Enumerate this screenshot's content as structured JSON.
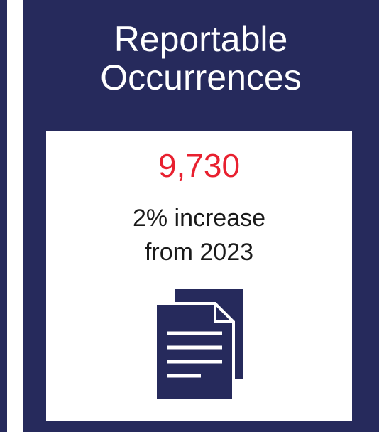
{
  "card": {
    "title_line1": "Reportable",
    "title_line2": "Occurrences",
    "stat_value": "9,730",
    "description_line1": "2% increase",
    "description_line2": "from 2023",
    "icon": "documents-icon"
  },
  "colors": {
    "background": "#262a5c",
    "stat": "#e8202f",
    "panel": "#ffffff"
  }
}
